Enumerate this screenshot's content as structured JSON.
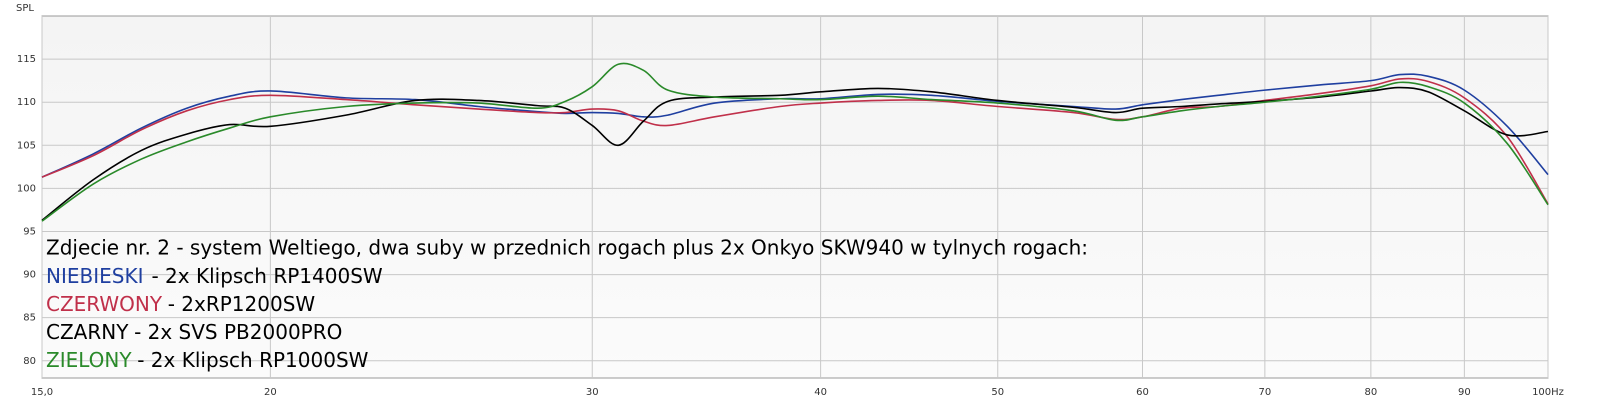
{
  "chart_data": {
    "type": "line",
    "y_axis_label": "SPL",
    "x_scale": "log",
    "grid": true,
    "x": [
      15,
      16,
      17,
      18,
      19,
      20,
      22,
      24,
      26,
      28,
      29,
      30,
      31,
      32,
      33,
      35,
      38,
      40,
      43,
      46,
      50,
      55,
      58,
      60,
      63,
      66,
      70,
      75,
      80,
      83,
      86,
      90,
      95,
      100
    ],
    "xlim": [
      15,
      100
    ],
    "xticks": [
      {
        "value": 15,
        "label": "15,0"
      },
      20,
      30,
      40,
      50,
      60,
      70,
      80,
      90,
      {
        "value": 100,
        "label": "100Hz"
      }
    ],
    "ylim": [
      78,
      120
    ],
    "yticks": [
      80,
      85,
      90,
      95,
      100,
      105,
      110,
      115
    ],
    "annotation": "Zdjecie nr. 2 - system Weltiego, dwa suby w przednich rogach plus 2x Onkyo SKW940 w tylnych rogach:",
    "series": [
      {
        "name": "NIEBIESKI",
        "description": "- 2x Klipsch RP1400SW",
        "color": "#1f3fa0",
        "values": [
          101.3,
          104,
          107,
          109.3,
          110.7,
          111.3,
          110.5,
          110.3,
          109.5,
          108.9,
          108.7,
          108.8,
          108.7,
          108.3,
          108.5,
          109.9,
          110.4,
          110.4,
          110.9,
          110.8,
          110.1,
          109.5,
          109.2,
          109.7,
          110.3,
          110.8,
          111.4,
          112,
          112.5,
          113.2,
          113,
          111.4,
          107.2,
          101.6
        ]
      },
      {
        "name": "CZERWONY",
        "description": "- 2xRP1200SW",
        "color": "#c0304a",
        "values": [
          101.3,
          103.8,
          106.8,
          109,
          110.3,
          110.8,
          110.3,
          109.7,
          109.2,
          108.8,
          108.8,
          109.2,
          109,
          107.8,
          107.3,
          108.3,
          109.5,
          109.9,
          110.2,
          110.2,
          109.5,
          108.8,
          108,
          108.3,
          109.3,
          109.5,
          110.2,
          111,
          111.9,
          112.7,
          112.4,
          110.5,
          106,
          98.2
        ]
      },
      {
        "name": "CZARNY",
        "description": "- 2x SVS PB2000PRO",
        "color": "#000000",
        "values": [
          96.3,
          101,
          104.4,
          106.3,
          107.4,
          107.2,
          108.5,
          110.2,
          110.2,
          109.6,
          109.3,
          107.3,
          105,
          107.8,
          110.1,
          110.6,
          110.8,
          111.2,
          111.6,
          111.2,
          110.2,
          109.4,
          108.8,
          109.3,
          109.5,
          109.8,
          110.1,
          110.6,
          111.3,
          111.7,
          111.2,
          109,
          106.2,
          106.6
        ]
      },
      {
        "name": "ZIELONY",
        "description": "- 2x Klipsch RP1000SW",
        "color": "#2a8a2a",
        "values": [
          96.2,
          100.5,
          103.4,
          105.4,
          107,
          108.3,
          109.5,
          109.9,
          109.9,
          109.3,
          110.1,
          111.8,
          114.4,
          113.7,
          111.4,
          110.6,
          110.4,
          110.3,
          110.7,
          110.3,
          109.9,
          109,
          107.9,
          108.3,
          109,
          109.5,
          110,
          110.7,
          111.5,
          112.3,
          111.8,
          109.9,
          105.2,
          98.1
        ]
      }
    ]
  }
}
